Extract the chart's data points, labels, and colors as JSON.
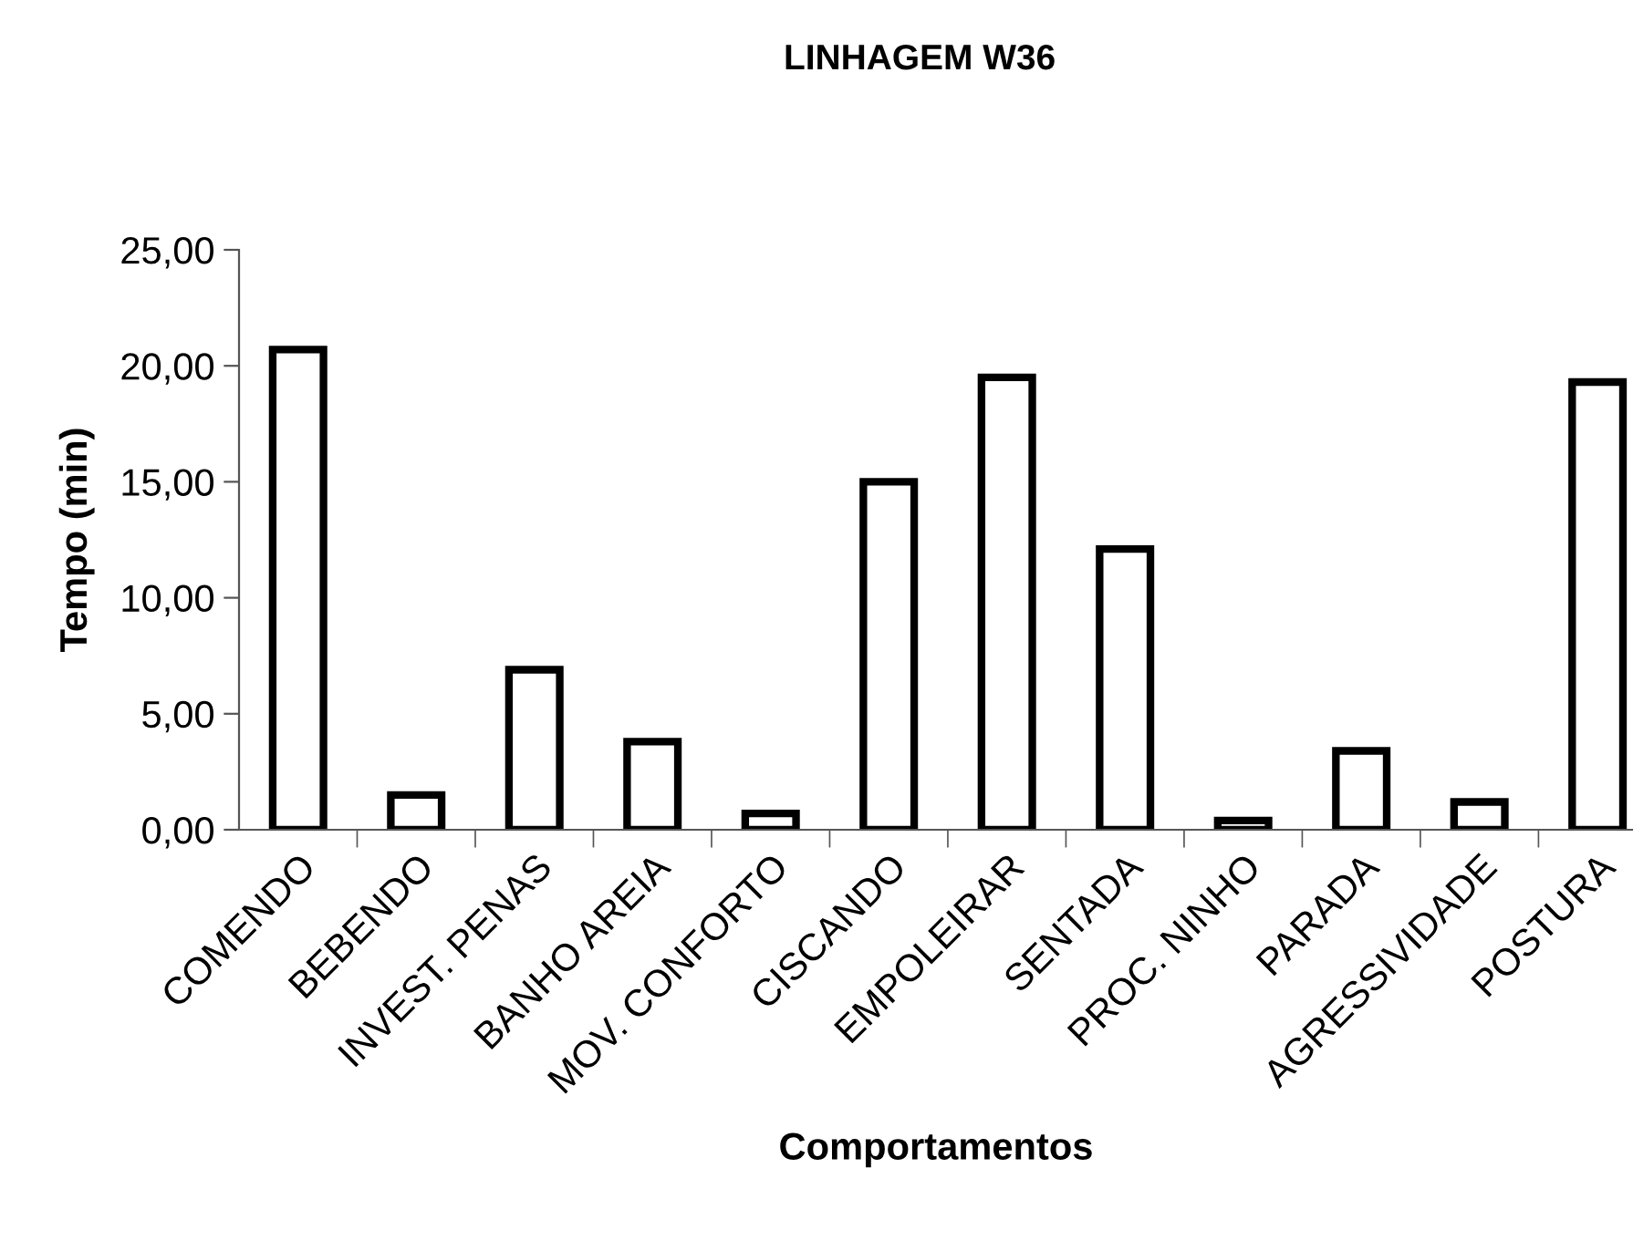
{
  "chart_data": {
    "type": "bar",
    "title": "LINHAGEM W36",
    "xlabel": "Comportamentos",
    "ylabel": "Tempo (min)",
    "categories": [
      "COMENDO",
      "BEBENDO",
      "INVEST. PENAS",
      "BANHO AREIA",
      "MOV. CONFORTO",
      "CISCANDO",
      "EMPOLEIRAR",
      "SENTADA",
      "PROC. NINHO",
      "PARADA",
      "AGRESSIVIDADE",
      "POSTURA"
    ],
    "values": [
      20.7,
      1.5,
      6.9,
      3.8,
      0.7,
      15.0,
      19.5,
      12.1,
      0.4,
      3.4,
      1.2,
      19.3
    ],
    "color": "#ffffff",
    "ylim": [
      0,
      25
    ],
    "yticks": [
      {
        "value": 0,
        "label": "0,00"
      },
      {
        "value": 5,
        "label": "5,00"
      },
      {
        "value": 10,
        "label": "10,00"
      },
      {
        "value": 15,
        "label": "15,00"
      },
      {
        "value": 20,
        "label": "20,00"
      },
      {
        "value": 25,
        "label": "25,00"
      }
    ],
    "grid": false,
    "legend": false
  }
}
